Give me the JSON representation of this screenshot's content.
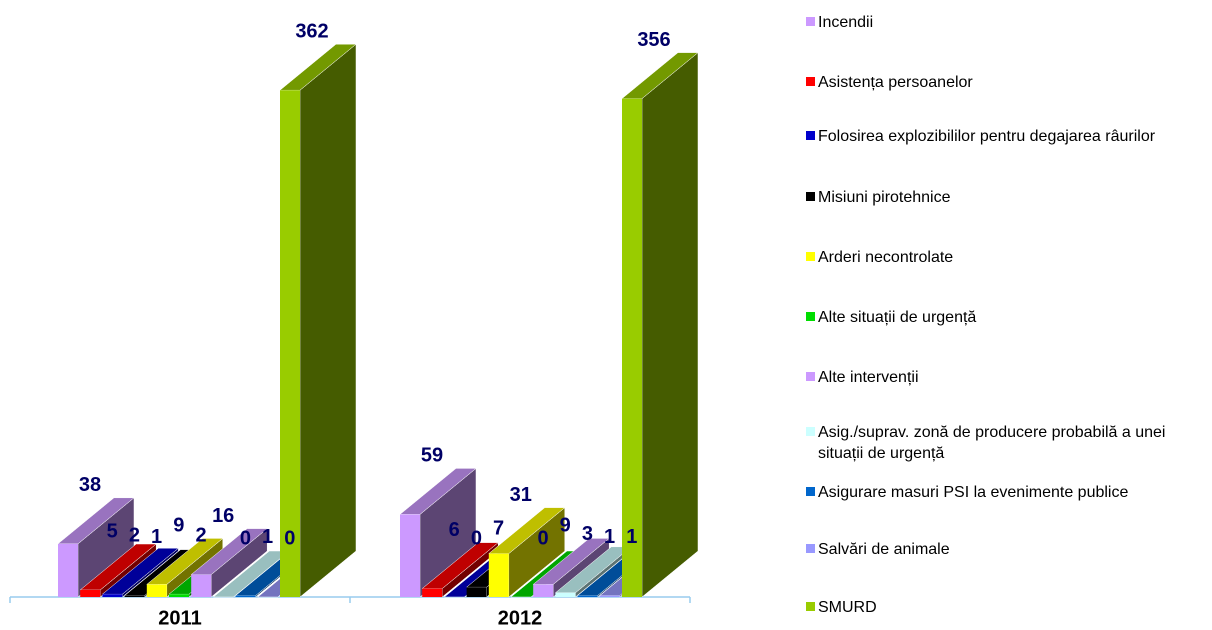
{
  "chart_data": {
    "type": "bar",
    "categories": [
      "2011",
      "2012"
    ],
    "series": [
      {
        "name": "Incendii",
        "color": "#cc99ff",
        "values": [
          38,
          59
        ]
      },
      {
        "name": "Asistența persoanelor",
        "color": "#ff0000",
        "values": [
          5,
          6
        ]
      },
      {
        "name": "Folosirea explozibililor pentru degajarea râurilor",
        "color": "#0000cc",
        "values": [
          2,
          0
        ]
      },
      {
        "name": "Misiuni pirotehnice",
        "color": "#000000",
        "values": [
          1,
          7
        ]
      },
      {
        "name": "Arderi necontrolate",
        "color": "#ffff00",
        "values": [
          9,
          31
        ]
      },
      {
        "name": "Alte situații de urgență",
        "color": "#00dd00",
        "values": [
          2,
          0
        ]
      },
      {
        "name": "Alte intervenții",
        "color": "#cc99ff",
        "values": [
          16,
          9
        ]
      },
      {
        "name": "Asig./suprav. zonă de producere probabilă a unei situații de urgență",
        "color": "#ccffff",
        "values": [
          0,
          3
        ]
      },
      {
        "name": "Asigurare masuri PSI la evenimente publice",
        "color": "#0066cc",
        "values": [
          1,
          1
        ]
      },
      {
        "name": "Salvări de animale",
        "color": "#9999ff",
        "values": [
          0,
          1
        ]
      },
      {
        "name": "SMURD",
        "color": "#99cc00",
        "values": [
          362,
          356
        ]
      }
    ]
  }
}
